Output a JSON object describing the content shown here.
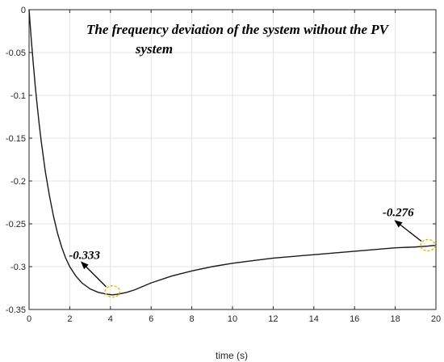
{
  "chart_data": {
    "type": "line",
    "title_lines": [
      "The frequency deviation of the system without the PV",
      "system"
    ],
    "xlabel": "time (s)",
    "ylabel": "",
    "xlim": [
      0,
      20
    ],
    "ylim": [
      -0.35,
      0
    ],
    "xticks": [
      0,
      2,
      4,
      6,
      8,
      10,
      12,
      14,
      16,
      18,
      20
    ],
    "yticks": [
      0,
      -0.05,
      -0.1,
      -0.15,
      -0.2,
      -0.25,
      -0.3,
      -0.35
    ],
    "grid": true,
    "colors": {
      "line": "#1a1a1a",
      "grid": "#e3e3e3",
      "axis": "#262626",
      "marker": "#e6b800"
    },
    "series": [
      {
        "x": [
          0,
          0.1,
          0.2,
          0.3,
          0.4,
          0.5,
          0.6,
          0.8,
          1.0,
          1.2,
          1.4,
          1.6,
          1.8,
          2.0,
          2.3,
          2.6,
          3.0,
          3.4,
          3.8,
          4.1,
          4.4,
          4.8,
          5.2,
          6.0,
          7.0,
          8.0,
          9.0,
          10.0,
          11.0,
          12.0,
          13.0,
          14.0,
          15.0,
          16.0,
          17.0,
          18.0,
          19.0,
          19.6,
          20.0
        ],
        "y": [
          0,
          -0.032,
          -0.061,
          -0.088,
          -0.112,
          -0.134,
          -0.154,
          -0.189,
          -0.217,
          -0.241,
          -0.261,
          -0.277,
          -0.29,
          -0.3,
          -0.311,
          -0.319,
          -0.326,
          -0.33,
          -0.332,
          -0.333,
          -0.332,
          -0.33,
          -0.327,
          -0.319,
          -0.311,
          -0.305,
          -0.3,
          -0.296,
          -0.293,
          -0.29,
          -0.288,
          -0.286,
          -0.284,
          -0.282,
          -0.28,
          -0.278,
          -0.277,
          -0.276,
          -0.275
        ]
      }
    ],
    "annotations": [
      {
        "label": "-0.333",
        "x": 4.1,
        "y": -0.329
      },
      {
        "label": "-0.276",
        "x": 19.6,
        "y": -0.275
      }
    ]
  }
}
